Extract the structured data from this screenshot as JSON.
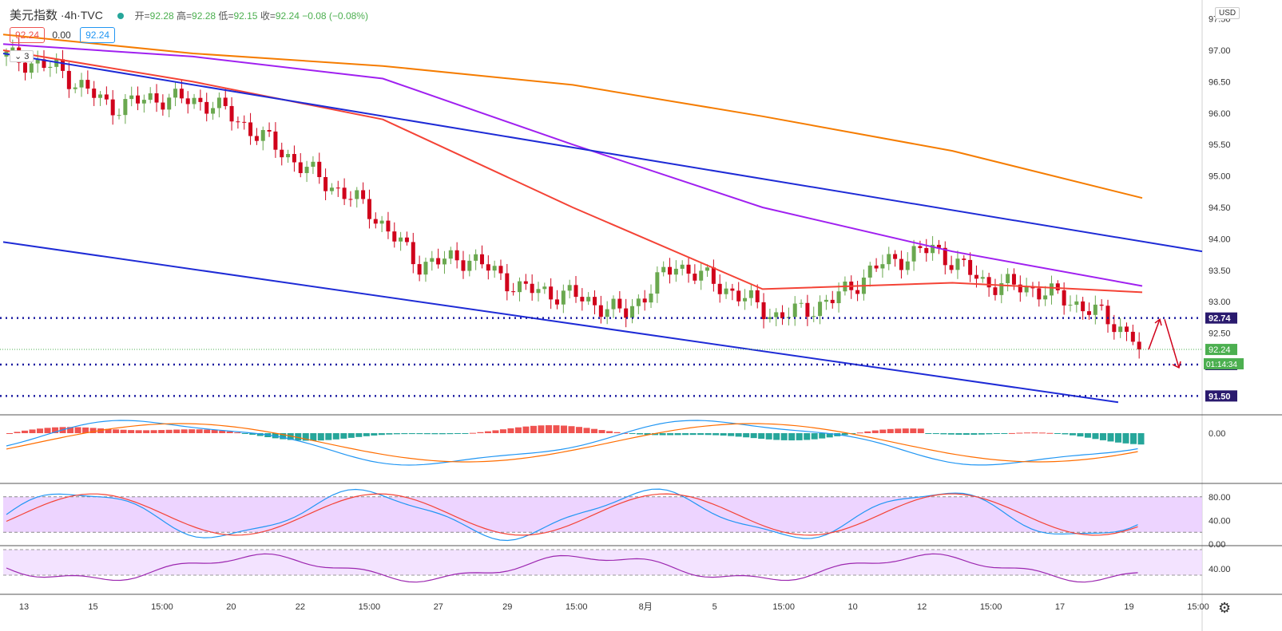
{
  "header": {
    "symbol": "美元指数",
    "interval": "4h",
    "exchange": "TVC",
    "open_label": "开",
    "open": "92.28",
    "high_label": "高",
    "high": "92.28",
    "low_label": "低",
    "low": "92.15",
    "close_label": "收",
    "close": "92.24",
    "change": "−0.08 (−0.08%)",
    "box_left": "92.24",
    "spread": "0.00",
    "box_right": "92.24",
    "collapse_label": "3",
    "currency": "USD",
    "settings_icon": "gear-icon"
  },
  "colors": {
    "up": "#6aa84f",
    "down": "#d0021b",
    "trend": "#1e2bd6",
    "ma_orange": "#f57c00",
    "ma_purple": "#a020f0",
    "ma_red": "#f44336",
    "level": "#1a1aa0",
    "current": "#4caf50"
  },
  "chart_data": [
    {
      "type": "candlestick",
      "title": "美元指数 4h TVC",
      "ylim": [
        91.2,
        97.8
      ],
      "price_ticks": [
        "97.50",
        "97.00",
        "96.50",
        "96.00",
        "95.50",
        "95.00",
        "94.50",
        "94.00",
        "93.50",
        "93.00",
        "92.50"
      ],
      "x_ticks": [
        "13",
        "15",
        "15:00",
        "20",
        "22",
        "15:00",
        "27",
        "29",
        "15:00",
        "8月",
        "5",
        "15:00",
        "10",
        "12",
        "15:00",
        "17",
        "19",
        "15:00"
      ],
      "ohlc_anchor": [
        [
          96.9,
          96.55
        ],
        [
          96.7,
          96.35
        ],
        [
          96.1,
          95.9
        ],
        [
          96.25,
          96.15
        ],
        [
          96.15,
          95.7
        ],
        [
          95.6,
          95.1
        ],
        [
          95.0,
          94.8
        ],
        [
          94.5,
          93.8
        ],
        [
          93.6,
          93.65
        ],
        [
          93.7,
          93.4
        ],
        [
          93.2,
          93.5
        ],
        [
          93.1,
          92.6
        ],
        [
          92.8,
          93.8
        ],
        [
          93.6,
          93.4
        ],
        [
          93.2,
          92.8
        ],
        [
          92.75,
          92.75
        ],
        [
          93.0,
          93.5
        ],
        [
          93.6,
          93.7
        ],
        [
          93.85,
          93.7
        ],
        [
          93.3,
          93.2
        ],
        [
          93.2,
          93.1
        ],
        [
          92.9,
          92.7
        ],
        [
          92.4,
          92.24
        ]
      ],
      "moving_averages": [
        {
          "color": "orange",
          "values": [
            97.25,
            96.95,
            96.75,
            96.45,
            95.95,
            95.4,
            94.65
          ]
        },
        {
          "color": "purple",
          "values": [
            97.1,
            96.9,
            96.55,
            95.5,
            94.5,
            93.8,
            93.25
          ]
        },
        {
          "color": "red",
          "values": [
            97.0,
            96.5,
            95.9,
            94.5,
            93.2,
            93.3,
            93.15
          ]
        }
      ],
      "trendlines": [
        {
          "from": [
            0,
            96.95
          ],
          "to": [
            1,
            93.8
          ]
        },
        {
          "from": [
            0,
            93.95
          ],
          "to": [
            0.93,
            91.4
          ]
        }
      ],
      "horizontal_levels": [
        "92.74",
        "92.00",
        "91.50"
      ],
      "current_price": "92.24",
      "countdown": "01:14:34"
    },
    {
      "type": "histogram+line",
      "zero_label": "0.00"
    },
    {
      "type": "line",
      "band": [
        20,
        80
      ],
      "ticks": [
        "80.00",
        "40.00",
        "0.00"
      ]
    },
    {
      "type": "line",
      "ticks": [
        "40.00"
      ]
    }
  ]
}
